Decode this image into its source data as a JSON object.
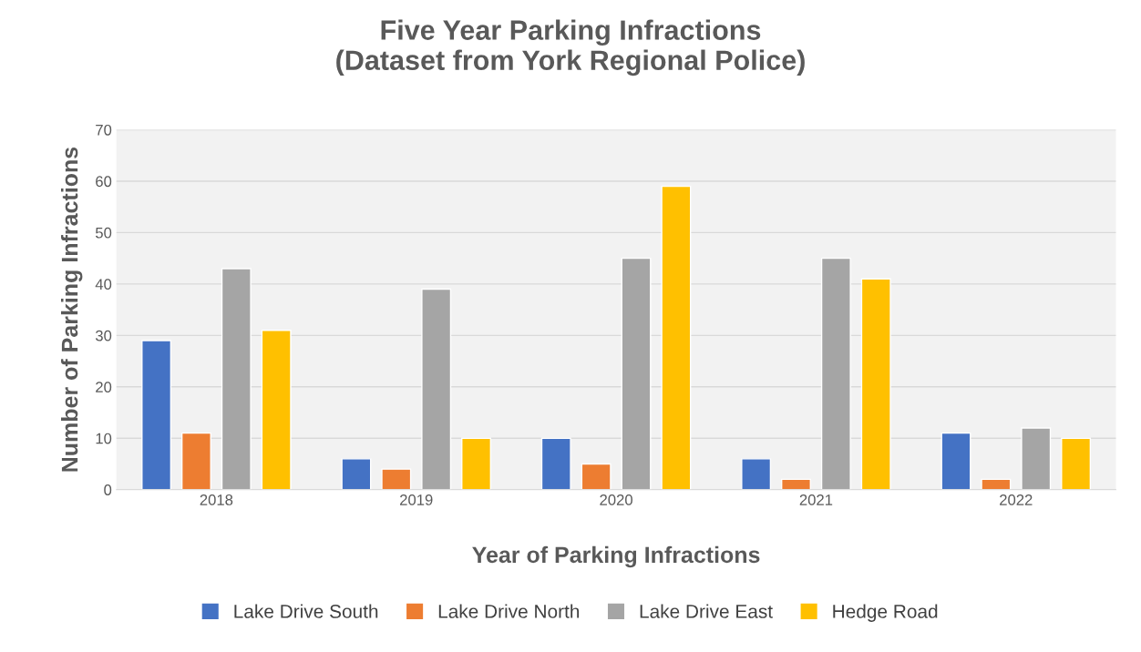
{
  "chart_data": {
    "type": "bar",
    "title": "Five Year Parking Infractions\n(Dataset from York Regional Police)",
    "xlabel": "Year of Parking Infractions",
    "ylabel": "Number of Parking Infractions",
    "categories": [
      "2018",
      "2019",
      "2020",
      "2021",
      "2022"
    ],
    "series": [
      {
        "name": "Lake Drive South",
        "color": "#4472c4",
        "values": [
          29,
          6,
          10,
          6,
          11
        ]
      },
      {
        "name": "Lake Drive North",
        "color": "#ed7d31",
        "values": [
          11,
          4,
          5,
          2,
          2
        ]
      },
      {
        "name": "Lake Drive East",
        "color": "#a5a5a5",
        "values": [
          43,
          39,
          45,
          45,
          12
        ]
      },
      {
        "name": "Hedge Road",
        "color": "#ffc000",
        "values": [
          31,
          10,
          59,
          41,
          10
        ]
      }
    ],
    "ylim": [
      0,
      70
    ],
    "yticks": [
      0,
      10,
      20,
      30,
      40,
      50,
      60,
      70
    ],
    "grid": "y",
    "legend": "bottom"
  }
}
